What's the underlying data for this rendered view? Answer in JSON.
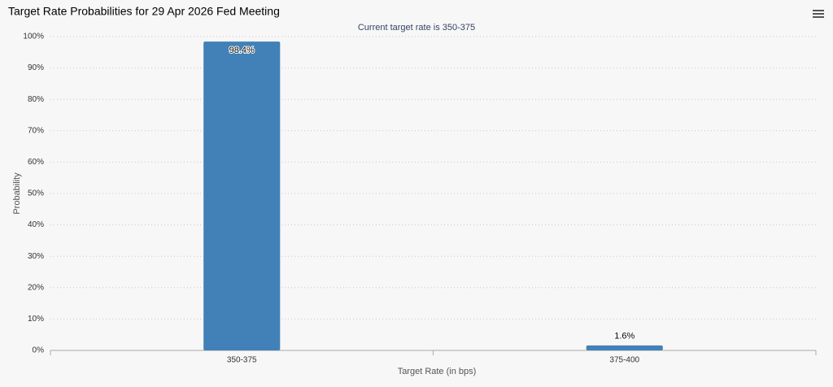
{
  "chart_data": {
    "type": "bar",
    "title": "Target Rate Probabilities for 29 Apr 2026 Fed Meeting",
    "subtitle": "Current target rate is 350-375",
    "y_label": "Probability",
    "x_label": "Target Rate (in bps)",
    "categories": [
      "350-375",
      "375-400"
    ],
    "values": [
      98.4,
      1.6
    ],
    "value_labels": [
      "98.4%",
      "1.6%"
    ],
    "color": "#4181b7",
    "ylim": [
      0,
      100
    ],
    "yticks": [
      {
        "value": 0,
        "label": "0%"
      },
      {
        "value": 10,
        "label": "10%"
      },
      {
        "value": 20,
        "label": "20%"
      },
      {
        "value": 30,
        "label": "30%"
      },
      {
        "value": 40,
        "label": "40%"
      },
      {
        "value": 50,
        "label": "50%"
      },
      {
        "value": 60,
        "label": "60%"
      },
      {
        "value": 70,
        "label": "70%"
      },
      {
        "value": 80,
        "label": "80%"
      },
      {
        "value": 90,
        "label": "90%"
      },
      {
        "value": 100,
        "label": "100%"
      }
    ],
    "grid": true
  }
}
